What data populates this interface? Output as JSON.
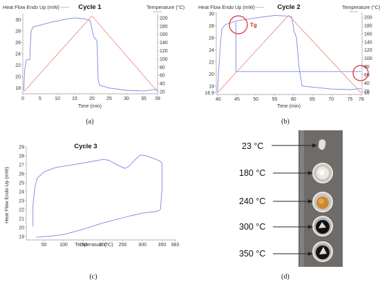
{
  "panel_labels": [
    "(a)",
    "(b)",
    "(c)",
    "(d)"
  ],
  "colors": {
    "heat_flow": "#7a84e6",
    "temperature": "#f08a8a",
    "tg_marker": "#d62728",
    "dashed_legend_heat": "#777777",
    "dashed_legend_temp": "#d62728"
  },
  "chart_data": [
    {
      "type": "line",
      "title": "Cycle 1",
      "ylabel_left": "Heat Flow Endo Up (mW)",
      "ylabel_right": "Temperature (°C)",
      "xlabel": "Time (min)",
      "xlim": [
        0,
        39
      ],
      "ylim_left": [
        17,
        31
      ],
      "ylim_right": [
        15,
        210
      ],
      "x_ticks": [
        0,
        5,
        10,
        15,
        20,
        25,
        30,
        35,
        39
      ],
      "y_ticks_left": [
        18,
        20,
        22,
        24,
        26,
        28,
        30
      ],
      "y_ticks_right": [
        20,
        40,
        60,
        80,
        100,
        120,
        140,
        160,
        180,
        200
      ],
      "series": [
        {
          "axis": "left",
          "color": "#7a84e6",
          "points": [
            [
              0.3,
              17.6
            ],
            [
              0.5,
              21
            ],
            [
              1,
              22.9
            ],
            [
              2,
              23
            ],
            [
              2.4,
              28
            ],
            [
              3,
              28.7
            ],
            [
              5,
              29
            ],
            [
              8,
              29.5
            ],
            [
              12,
              30
            ],
            [
              15,
              30.3
            ],
            [
              18,
              30.1
            ],
            [
              19.5,
              29.8
            ],
            [
              20.5,
              27
            ],
            [
              21.2,
              26.5
            ],
            [
              21.5,
              26
            ],
            [
              21.8,
              19.5
            ],
            [
              22.2,
              18.5
            ],
            [
              25,
              18
            ],
            [
              30,
              17.6
            ],
            [
              35,
              17.5
            ],
            [
              39,
              17.8
            ]
          ]
        },
        {
          "axis": "right",
          "color": "#f08a8a",
          "points": [
            [
              0.3,
              20
            ],
            [
              20,
              205
            ],
            [
              39,
              20
            ]
          ]
        }
      ]
    },
    {
      "type": "line",
      "title": "Cycle 2",
      "ylabel_left": "Heat Flow Endo Up (mW)",
      "ylabel_right": "Temperature (°C)",
      "xlabel": "Time (min)",
      "xlim": [
        39.5,
        78.2
      ],
      "ylim_left": [
        16.6,
        30.2
      ],
      "ylim_right": [
        12,
        212
      ],
      "x_ticks": [
        40,
        45,
        50,
        55,
        60,
        65,
        70,
        75,
        78
      ],
      "y_ticks_left": [
        16.9,
        18,
        20,
        22,
        24,
        26,
        28,
        30
      ],
      "y_ticks_right": [
        16,
        20,
        40,
        60,
        80,
        100,
        120,
        140,
        160,
        180,
        200
      ],
      "annotations": [
        "Tg"
      ],
      "series": [
        {
          "axis": "left",
          "color": "#7a84e6",
          "points": [
            [
              39.8,
              17
            ],
            [
              40.2,
              21
            ],
            [
              40.6,
              25
            ],
            [
              41,
              27.5
            ],
            [
              42,
              28.2
            ],
            [
              44,
              28.6
            ],
            [
              45,
              28.8
            ],
            [
              50,
              29.3
            ],
            [
              55,
              29.7
            ],
            [
              58,
              29.6
            ],
            [
              59.5,
              29.5
            ],
            [
              60.2,
              27
            ],
            [
              60.8,
              26
            ],
            [
              61.5,
              21
            ],
            [
              62.3,
              18
            ],
            [
              70,
              17.5
            ],
            [
              75,
              17.4
            ],
            [
              78,
              17.6
            ]
          ]
        },
        {
          "axis": "left",
          "color": "#7a84e6",
          "points": [
            [
              44.7,
              28.6
            ],
            [
              44.7,
              20.4
            ],
            [
              78,
              20.4
            ]
          ]
        },
        {
          "axis": "right",
          "color": "#f08a8a",
          "points": [
            [
              39.8,
              16
            ],
            [
              58.7,
              205
            ],
            [
              77.9,
              16
            ]
          ]
        }
      ]
    },
    {
      "type": "line",
      "title": "Cycle 3",
      "ylabel": "Heat Flow Endo Up (mW)",
      "xlabel": "Temperature (°C)",
      "xlim": [
        5,
        386
      ],
      "ylim": [
        18.6,
        29
      ],
      "x_ticks": [
        50,
        100,
        150,
        200,
        250,
        300,
        350,
        383
      ],
      "y_ticks": [
        19,
        20,
        21,
        22,
        23,
        24,
        25,
        26,
        27,
        28,
        29
      ],
      "series": [
        {
          "color": "#7a84e6",
          "points": [
            [
              22,
              20.1
            ],
            [
              22,
              22.5
            ],
            [
              27,
              24.5
            ],
            [
              33,
              25.5
            ],
            [
              50,
              26.2
            ],
            [
              80,
              26.7
            ],
            [
              150,
              27.2
            ],
            [
              200,
              27.6
            ],
            [
              215,
              27.5
            ],
            [
              240,
              26.9
            ],
            [
              255,
              26.6
            ],
            [
              265,
              26.8
            ],
            [
              280,
              27.5
            ],
            [
              295,
              28.1
            ],
            [
              310,
              28
            ],
            [
              335,
              27.6
            ],
            [
              345,
              27.4
            ],
            [
              350,
              27.2
            ],
            [
              350,
              24.4
            ],
            [
              346,
              22
            ],
            [
              338,
              21.8
            ],
            [
              300,
              21.6
            ],
            [
              270,
              21.3
            ],
            [
              200,
              20.5
            ],
            [
              150,
              19.8
            ],
            [
              100,
              19.2
            ],
            [
              60,
              19
            ],
            [
              30,
              18.9
            ]
          ]
        }
      ]
    }
  ],
  "photo": {
    "labels": [
      "23 °C",
      "180 °C",
      "240 °C",
      "300 °C",
      "350 °C"
    ]
  }
}
